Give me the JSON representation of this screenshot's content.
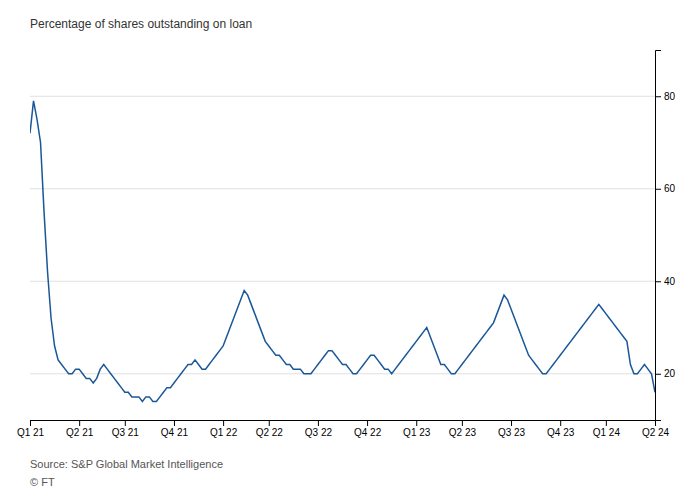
{
  "chart_data": {
    "type": "line",
    "ylabel": "Percentage of shares outstanding on loan",
    "annotations": [
      "Source: S&P Global Market Intelligence",
      "© FT"
    ],
    "color": "#1a5799",
    "grid": true,
    "ylim": [
      10,
      90
    ],
    "yticks": [
      20,
      40,
      60,
      80
    ],
    "categories": [
      "Q1 21",
      null,
      null,
      null,
      null,
      null,
      null,
      null,
      null,
      null,
      null,
      null,
      null,
      null,
      "Q2 21",
      null,
      null,
      null,
      null,
      null,
      null,
      null,
      null,
      null,
      null,
      null,
      null,
      "Q3 21",
      null,
      null,
      null,
      null,
      null,
      null,
      null,
      null,
      null,
      null,
      null,
      null,
      null,
      "Q4 21",
      null,
      null,
      null,
      null,
      null,
      null,
      null,
      null,
      null,
      null,
      null,
      null,
      null,
      "Q1 22",
      null,
      null,
      null,
      null,
      null,
      null,
      null,
      null,
      null,
      null,
      null,
      null,
      "Q2 22",
      null,
      null,
      null,
      null,
      null,
      null,
      null,
      null,
      null,
      null,
      null,
      null,
      null,
      "Q3 22",
      null,
      null,
      null,
      null,
      null,
      null,
      null,
      null,
      null,
      null,
      null,
      null,
      null,
      "Q4 22",
      null,
      null,
      null,
      null,
      null,
      null,
      null,
      null,
      null,
      null,
      null,
      null,
      null,
      "Q1 23",
      null,
      null,
      null,
      null,
      null,
      null,
      null,
      null,
      null,
      null,
      null,
      null,
      "Q2 23",
      null,
      null,
      null,
      null,
      null,
      null,
      null,
      null,
      null,
      null,
      null,
      null,
      null,
      "Q3 23",
      null,
      null,
      null,
      null,
      null,
      null,
      null,
      null,
      null,
      null,
      null,
      null,
      null,
      "Q4 23",
      null,
      null,
      null,
      null,
      null,
      null,
      null,
      null,
      null,
      null,
      null,
      null,
      "Q1 24",
      null,
      null,
      null,
      null,
      null,
      null,
      null,
      null,
      null,
      null,
      null,
      null,
      null,
      "Q2 24"
    ],
    "values": [
      72,
      79,
      75,
      70,
      55,
      42,
      32,
      26,
      23,
      22,
      21,
      20,
      20,
      21,
      21,
      20,
      19,
      19,
      18,
      19,
      21,
      22,
      21,
      20,
      19,
      18,
      17,
      16,
      16,
      15,
      15,
      15,
      14,
      15,
      15,
      14,
      14,
      15,
      16,
      17,
      17,
      18,
      19,
      20,
      21,
      22,
      22,
      23,
      22,
      21,
      21,
      22,
      23,
      24,
      25,
      26,
      28,
      30,
      32,
      34,
      36,
      38,
      37,
      35,
      33,
      31,
      29,
      27,
      26,
      25,
      24,
      24,
      23,
      22,
      22,
      21,
      21,
      21,
      20,
      20,
      20,
      21,
      22,
      23,
      24,
      25,
      25,
      24,
      23,
      22,
      22,
      21,
      20,
      20,
      21,
      22,
      23,
      24,
      24,
      23,
      22,
      21,
      21,
      20,
      21,
      22,
      23,
      24,
      25,
      26,
      27,
      28,
      29,
      30,
      28,
      26,
      24,
      22,
      22,
      21,
      20,
      20,
      21,
      22,
      23,
      24,
      25,
      26,
      27,
      28,
      29,
      30,
      31,
      33,
      35,
      37,
      36,
      34,
      32,
      30,
      28,
      26,
      24,
      23,
      22,
      21,
      20,
      20,
      21,
      22,
      23,
      24,
      25,
      26,
      27,
      28,
      29,
      30,
      31,
      32,
      33,
      34,
      35,
      34,
      33,
      32,
      31,
      30,
      29,
      28,
      27,
      22,
      20,
      20,
      21,
      22,
      21,
      20,
      16
    ]
  }
}
